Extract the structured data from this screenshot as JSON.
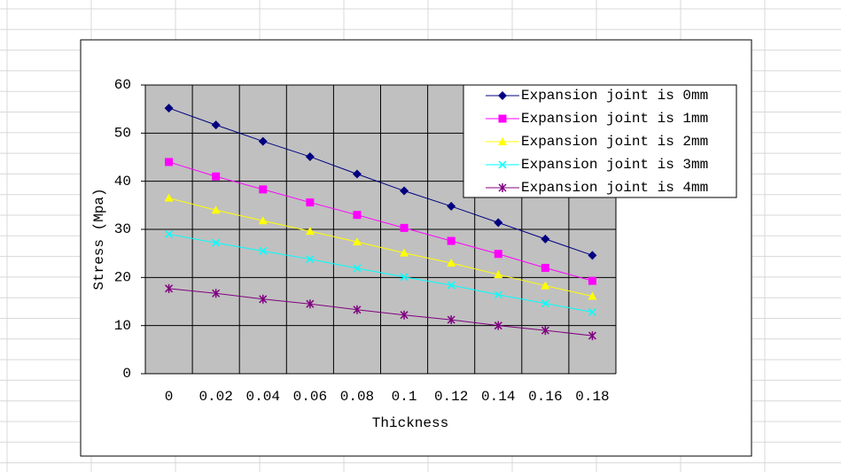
{
  "chart_data": {
    "type": "line",
    "x_label": "Thickness",
    "y_label": "Stress (Mpa)",
    "categories": [
      "0",
      "0.02",
      "0.04",
      "0.06",
      "0.08",
      "0.1",
      "0.12",
      "0.14",
      "0.16",
      "0.18"
    ],
    "series": [
      {
        "name": "Expansion joint is 0mm",
        "color": "#000080",
        "marker": "diamond",
        "values": [
          55.2,
          51.7,
          48.3,
          45.1,
          41.5,
          38.0,
          34.8,
          31.4,
          28.0,
          24.6
        ]
      },
      {
        "name": "Expansion joint is 1mm",
        "color": "#ff00ff",
        "marker": "square",
        "values": [
          44.0,
          41.0,
          38.3,
          35.6,
          33.0,
          30.3,
          27.6,
          24.9,
          22.0,
          19.3
        ]
      },
      {
        "name": "Expansion joint is 2mm",
        "color": "#ffff00",
        "marker": "triangle",
        "values": [
          36.5,
          34.0,
          31.8,
          29.6,
          27.4,
          25.1,
          23.0,
          20.6,
          18.3,
          16.1
        ]
      },
      {
        "name": "Expansion joint is 3mm",
        "color": "#00ffff",
        "marker": "x",
        "values": [
          29.0,
          27.2,
          25.5,
          23.8,
          21.9,
          20.1,
          18.4,
          16.4,
          14.6,
          12.8
        ]
      },
      {
        "name": "Expansion joint is 4mm",
        "color": "#800080",
        "marker": "star",
        "values": [
          17.7,
          16.7,
          15.5,
          14.5,
          13.3,
          12.2,
          11.2,
          10.0,
          9.0,
          7.9
        ]
      }
    ],
    "ylim": [
      0,
      60
    ],
    "yticks": [
      0,
      10,
      20,
      30,
      40,
      50,
      60
    ],
    "grid": true,
    "legend": "top-right"
  }
}
